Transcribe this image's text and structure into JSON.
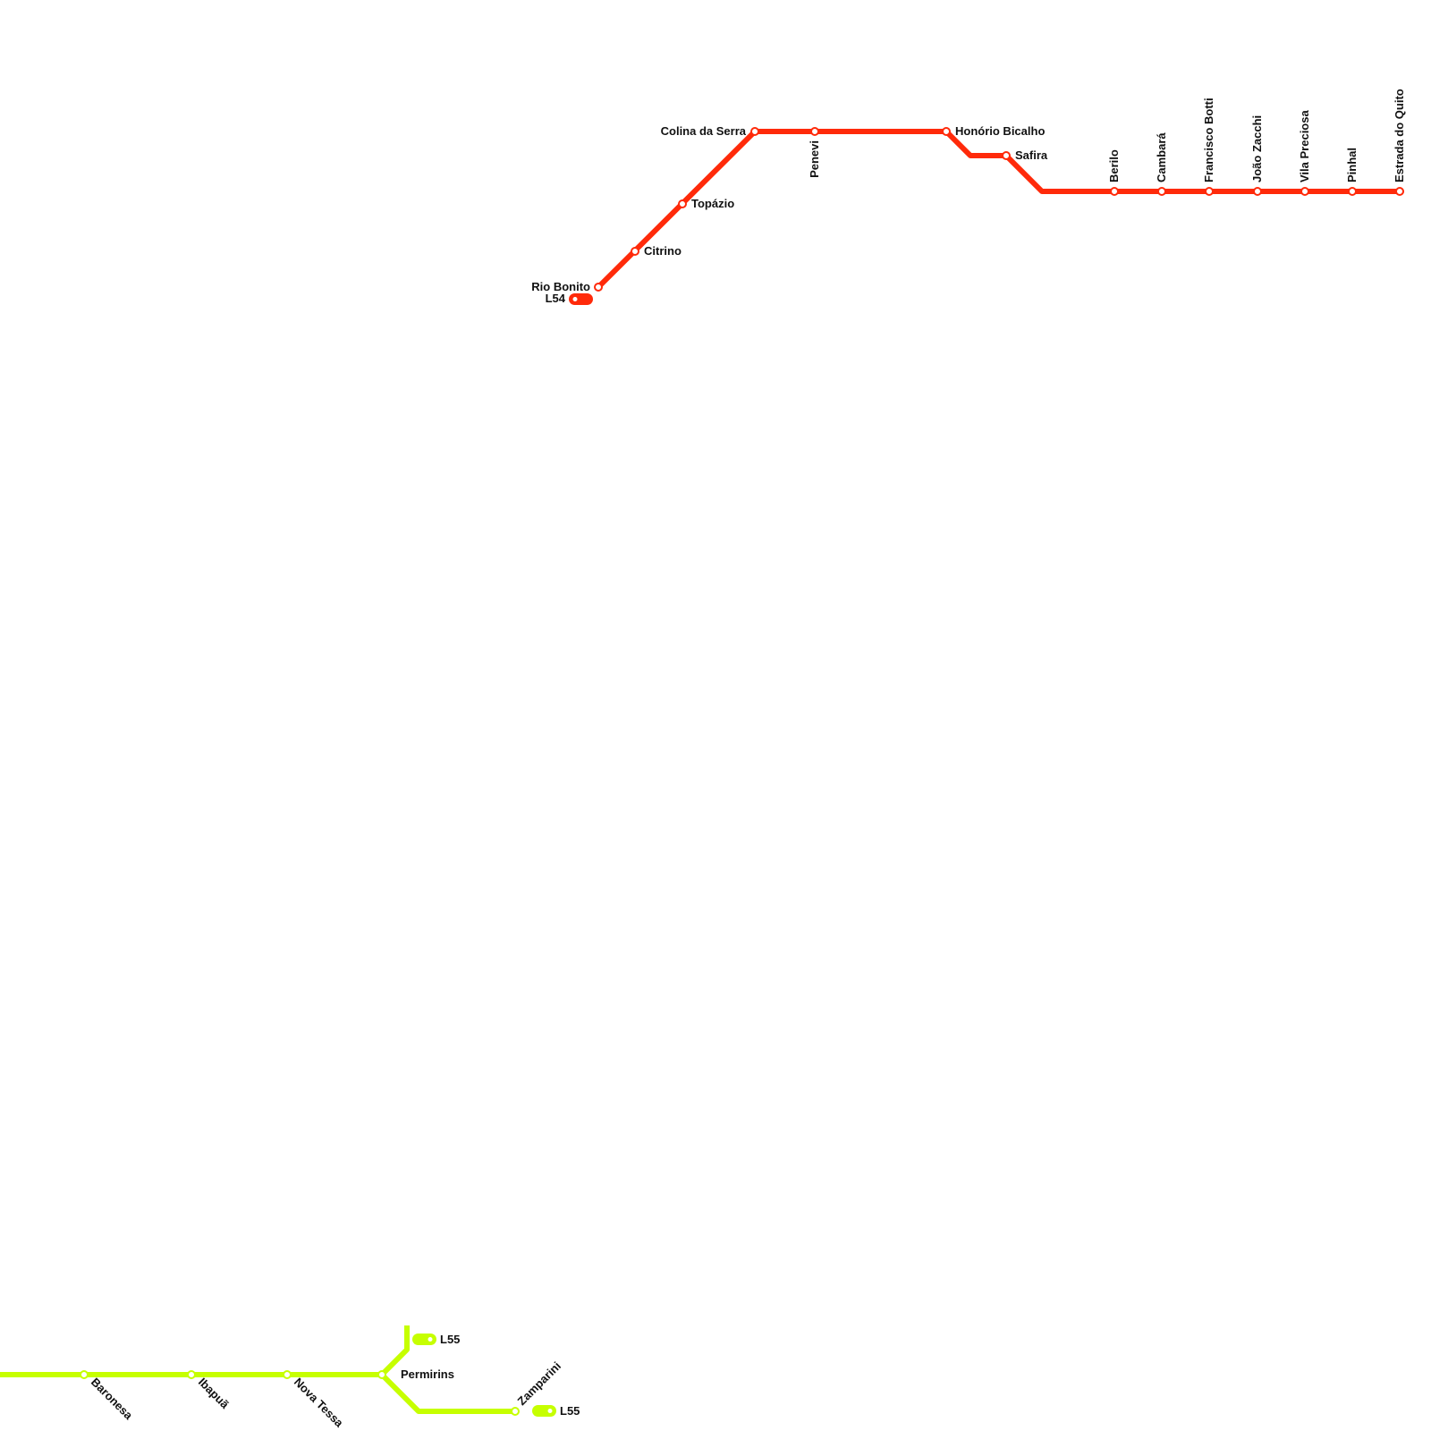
{
  "colors": {
    "background": "#ffffff",
    "label": "#111111",
    "station_fill": "#ffffff"
  },
  "lines": [
    {
      "id": "L54",
      "color": "#ff2a0a",
      "terminal_tags": [
        {
          "label": "L54"
        }
      ],
      "stations": [
        {
          "name": "Rio Bonito"
        },
        {
          "name": "Citrino"
        },
        {
          "name": "Topázio"
        },
        {
          "name": "Colina da Serra"
        },
        {
          "name": "Penevi"
        },
        {
          "name": "Honório Bicalho"
        },
        {
          "name": "Safira"
        },
        {
          "name": "Berilo"
        },
        {
          "name": "Cambará"
        },
        {
          "name": "Francisco Botti"
        },
        {
          "name": "João Zacchi"
        },
        {
          "name": "Vila Preciosa"
        },
        {
          "name": "Pinhal"
        },
        {
          "name": "Estrada do Quito"
        }
      ]
    },
    {
      "id": "L55",
      "color": "#c6ff00",
      "terminal_tags": [
        {
          "label": "L55"
        },
        {
          "label": "L55"
        }
      ],
      "stations": [
        {
          "name": "Baronesa"
        },
        {
          "name": "Ibapuã"
        },
        {
          "name": "Nova Tessa"
        },
        {
          "name": "Permirins"
        },
        {
          "name": "Zamparini"
        }
      ]
    }
  ]
}
